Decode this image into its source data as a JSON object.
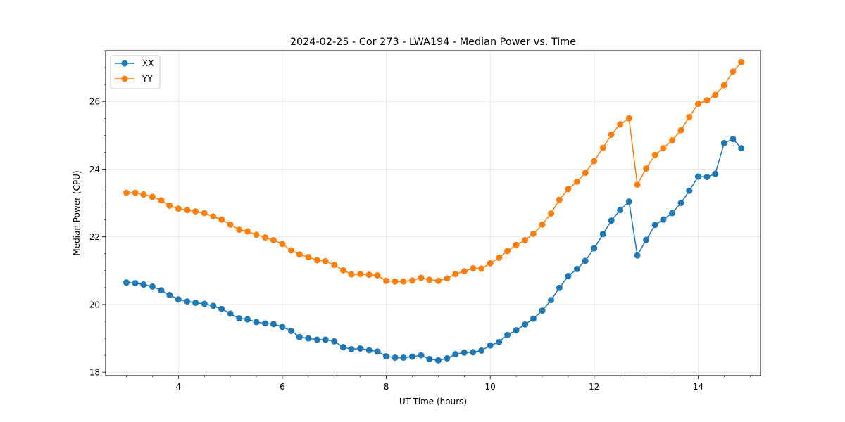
{
  "chart_data": {
    "type": "line",
    "title": "2024-02-25 - Cor 273 - LWA194 - Median Power vs. Time",
    "xlabel": "UT Time (hours)",
    "ylabel": "Median Power (CPU)",
    "xlim": [
      2.6,
      15.2
    ],
    "ylim": [
      17.9,
      27.5
    ],
    "xticks": [
      4,
      6,
      8,
      10,
      12,
      14
    ],
    "xtick_labels": [
      "4",
      "6",
      "8",
      "10",
      "12",
      "14"
    ],
    "yticks": [
      18,
      20,
      22,
      24,
      26
    ],
    "ytick_labels": [
      "18",
      "20",
      "22",
      "24",
      "26"
    ],
    "grid": true,
    "legend_position": "top-left",
    "x": [
      3.0,
      3.17,
      3.33,
      3.5,
      3.67,
      3.83,
      4.0,
      4.17,
      4.33,
      4.5,
      4.67,
      4.83,
      5.0,
      5.17,
      5.33,
      5.5,
      5.67,
      5.83,
      6.0,
      6.17,
      6.33,
      6.5,
      6.67,
      6.83,
      7.0,
      7.17,
      7.33,
      7.5,
      7.67,
      7.83,
      8.0,
      8.17,
      8.33,
      8.5,
      8.67,
      8.83,
      9.0,
      9.17,
      9.33,
      9.5,
      9.67,
      9.83,
      10.0,
      10.17,
      10.33,
      10.5,
      10.67,
      10.83,
      11.0,
      11.17,
      11.33,
      11.5,
      11.67,
      11.83,
      12.0,
      12.17,
      12.33,
      12.5,
      12.67,
      12.83,
      13.0,
      13.17,
      13.33,
      13.5,
      13.67,
      13.83,
      14.0,
      14.17,
      14.33,
      14.5,
      14.67,
      14.83
    ],
    "series": [
      {
        "name": "XX",
        "color": "#1f77b4",
        "values": [
          20.65,
          20.63,
          20.59,
          20.53,
          20.42,
          20.28,
          20.15,
          20.09,
          20.05,
          20.02,
          19.96,
          19.87,
          19.73,
          19.59,
          19.56,
          19.48,
          19.44,
          19.42,
          19.34,
          19.22,
          19.04,
          19.0,
          18.96,
          18.96,
          18.91,
          18.74,
          18.68,
          18.7,
          18.65,
          18.61,
          18.47,
          18.43,
          18.43,
          18.46,
          18.5,
          18.39,
          18.35,
          18.41,
          18.53,
          18.58,
          18.59,
          18.64,
          18.79,
          18.89,
          19.1,
          19.24,
          19.41,
          19.58,
          19.82,
          20.13,
          20.49,
          20.84,
          21.05,
          21.29,
          21.66,
          22.08,
          22.48,
          22.79,
          23.04,
          21.45,
          21.91,
          22.35,
          22.51,
          22.7,
          23.0,
          23.36,
          23.78,
          23.77,
          23.86,
          24.77,
          24.89,
          24.62
        ]
      },
      {
        "name": "YY",
        "color": "#ff7f0e",
        "values": [
          23.3,
          23.3,
          23.25,
          23.18,
          23.08,
          22.92,
          22.83,
          22.79,
          22.75,
          22.7,
          22.6,
          22.51,
          22.36,
          22.21,
          22.16,
          22.06,
          21.98,
          21.9,
          21.79,
          21.6,
          21.48,
          21.4,
          21.31,
          21.28,
          21.17,
          21.01,
          20.89,
          20.9,
          20.88,
          20.86,
          20.7,
          20.68,
          20.68,
          20.71,
          20.79,
          20.73,
          20.7,
          20.77,
          20.9,
          20.98,
          21.07,
          21.06,
          21.22,
          21.38,
          21.58,
          21.76,
          21.9,
          22.09,
          22.36,
          22.69,
          23.09,
          23.41,
          23.63,
          23.89,
          24.24,
          24.63,
          25.02,
          25.32,
          25.5,
          23.54,
          24.02,
          24.42,
          24.62,
          24.85,
          25.15,
          25.54,
          25.93,
          26.03,
          26.19,
          26.48,
          26.88,
          27.16
        ]
      }
    ]
  }
}
